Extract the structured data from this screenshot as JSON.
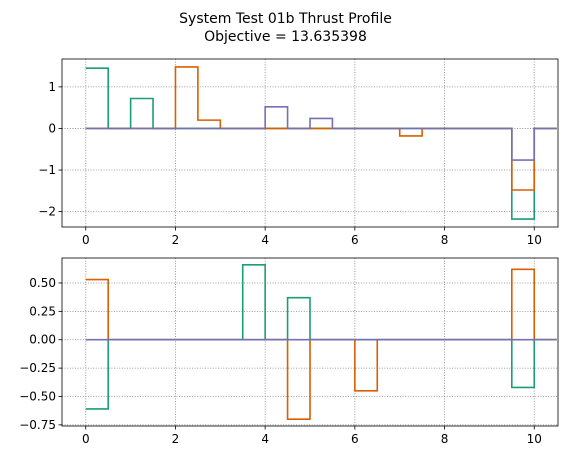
{
  "title_line1": "System Test 01b Thrust Profile",
  "title_line2": "Objective = 13.635398",
  "colors": [
    "#1b9e77",
    "#d95f02",
    "#7570b3"
  ],
  "chart_data": [
    {
      "type": "line",
      "step": "post",
      "grid": true,
      "xlim": [
        -0.53,
        10.53
      ],
      "ylim": [
        -2.37,
        1.67
      ],
      "xticks": [
        0,
        2,
        4,
        6,
        8,
        10
      ],
      "yticks": [
        1,
        0,
        -1,
        -2
      ],
      "ytick_labels": [
        "1",
        "0",
        "−1",
        "−2"
      ],
      "series": [
        {
          "x": [
            0,
            0.5,
            1,
            1.5,
            2,
            2.5,
            3,
            3.5,
            4,
            4.5,
            5,
            5.5,
            6,
            6.5,
            7,
            7.5,
            8,
            8.5,
            9,
            9.5,
            10,
            10.5
          ],
          "values": [
            1.45,
            0,
            0.72,
            0,
            0,
            0,
            0,
            0,
            0,
            0,
            0,
            0,
            0,
            0,
            0,
            0,
            0,
            0,
            0,
            -2.18,
            0,
            0
          ]
        },
        {
          "x": [
            0,
            0.5,
            1,
            1.5,
            2,
            2.5,
            3,
            3.5,
            4,
            4.5,
            5,
            5.5,
            6,
            6.5,
            7,
            7.5,
            8,
            8.5,
            9,
            9.5,
            10,
            10.5
          ],
          "values": [
            0,
            0,
            0,
            0,
            1.48,
            0.2,
            0,
            0,
            0,
            0,
            0,
            0,
            0,
            0,
            -0.18,
            0,
            0,
            0,
            0,
            -1.48,
            0,
            0
          ]
        },
        {
          "x": [
            0,
            0.5,
            1,
            1.5,
            2,
            2.5,
            3,
            3.5,
            4,
            4.5,
            5,
            5.5,
            6,
            6.5,
            7,
            7.5,
            8,
            8.5,
            9,
            9.5,
            10,
            10.5
          ],
          "values": [
            0,
            0,
            0,
            0,
            0,
            0,
            0,
            0,
            0.52,
            0,
            0.24,
            0,
            0,
            0,
            0,
            0,
            0,
            0,
            0,
            -0.76,
            0,
            0
          ]
        }
      ]
    },
    {
      "type": "line",
      "step": "post",
      "grid": true,
      "xlim": [
        -0.53,
        10.53
      ],
      "ylim": [
        -0.76,
        0.72
      ],
      "xticks": [
        0,
        2,
        4,
        6,
        8,
        10
      ],
      "yticks": [
        0.5,
        0.25,
        0,
        -0.25,
        -0.5,
        -0.75
      ],
      "ytick_labels": [
        "0.50",
        "0.25",
        "0.00",
        "−0.25",
        "−0.50",
        "−0.75"
      ],
      "series": [
        {
          "x": [
            0,
            0.5,
            1,
            1.5,
            2,
            2.5,
            3,
            3.5,
            4,
            4.5,
            5,
            5.5,
            6,
            6.5,
            7,
            7.5,
            8,
            8.5,
            9,
            9.5,
            10,
            10.5
          ],
          "values": [
            -0.61,
            0,
            0,
            0,
            0,
            0,
            0,
            0.66,
            0,
            0.37,
            0,
            0,
            0,
            0,
            0,
            0,
            0,
            0,
            0,
            -0.42,
            0,
            0
          ]
        },
        {
          "x": [
            0,
            0.5,
            1,
            1.5,
            2,
            2.5,
            3,
            3.5,
            4,
            4.5,
            5,
            5.5,
            6,
            6.5,
            7,
            7.5,
            8,
            8.5,
            9,
            9.5,
            10,
            10.5
          ],
          "values": [
            0.53,
            0,
            0,
            0,
            0,
            0,
            0,
            0,
            0,
            -0.7,
            0,
            0,
            -0.45,
            0,
            0,
            0,
            0,
            0,
            0,
            0.62,
            0,
            0
          ]
        },
        {
          "x": [
            0,
            0.5,
            1,
            1.5,
            2,
            2.5,
            3,
            3.5,
            4,
            4.5,
            5,
            5.5,
            6,
            6.5,
            7,
            7.5,
            8,
            8.5,
            9,
            9.5,
            10,
            10.5
          ],
          "values": [
            0,
            0,
            0,
            0,
            0,
            0,
            0,
            0,
            0,
            0,
            0,
            0,
            0,
            0,
            0,
            0,
            0,
            0,
            0,
            0,
            0,
            0
          ]
        }
      ]
    }
  ]
}
